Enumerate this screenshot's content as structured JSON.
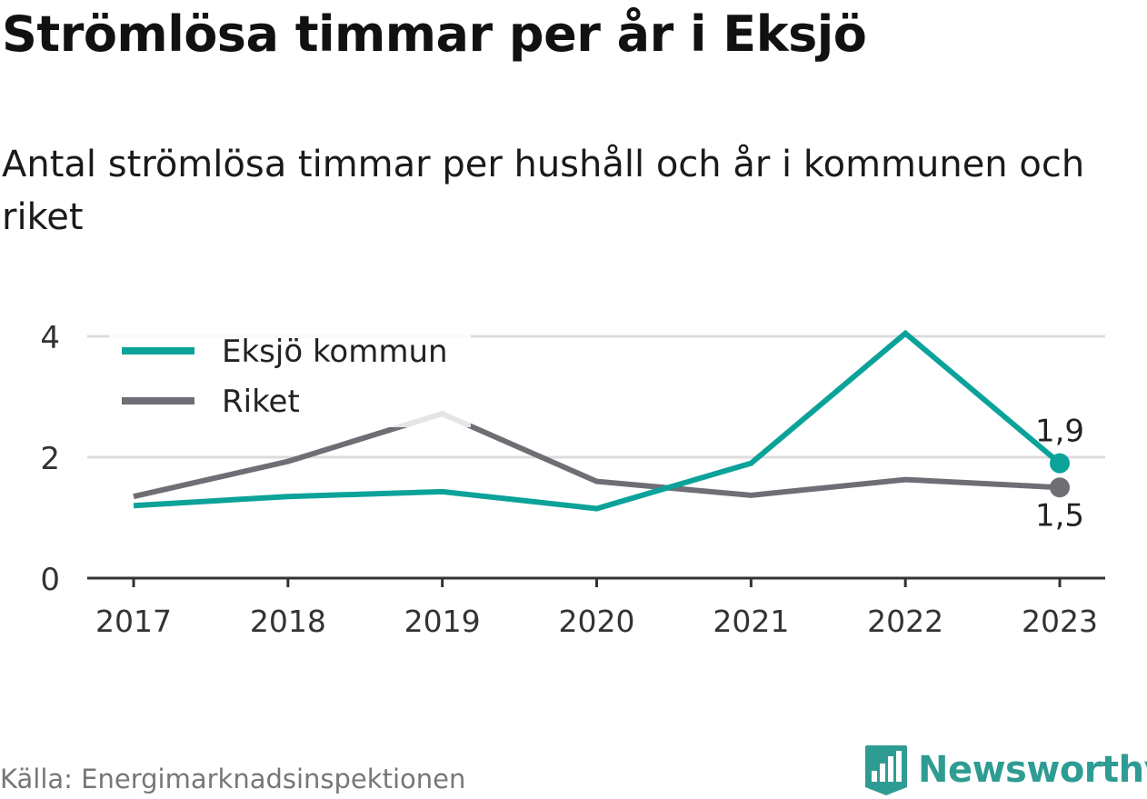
{
  "title": "Strömlösa timmar per år i Eksjö",
  "subtitle": "Antal strömlösa timmar per hushåll och år i kommunen och riket",
  "source": "Källa: Energimarknadsinspektionen",
  "brand": {
    "name": "Newsworthy",
    "icon": "bar-chart-icon",
    "color": "#2f9c93"
  },
  "colors": {
    "eksjo": "#0ba29a",
    "riket": "#6f6e75",
    "grid": "#dcdcdc",
    "axis": "#333333"
  },
  "chart_data": {
    "type": "line",
    "categories": [
      "2017",
      "2018",
      "2019",
      "2020",
      "2021",
      "2022",
      "2023"
    ],
    "y_ticks": [
      "0",
      "2",
      "4"
    ],
    "ylim": [
      0,
      4
    ],
    "grid": true,
    "legend_position": "top-left",
    "series": [
      {
        "name": "Eksjö kommun",
        "values": [
          1.2,
          1.35,
          1.43,
          1.15,
          1.9,
          4.05,
          1.9
        ],
        "end_label": "1,9"
      },
      {
        "name": "Riket",
        "values": [
          1.35,
          1.93,
          2.72,
          1.6,
          1.37,
          1.63,
          1.5
        ],
        "end_label": "1,5"
      }
    ]
  }
}
